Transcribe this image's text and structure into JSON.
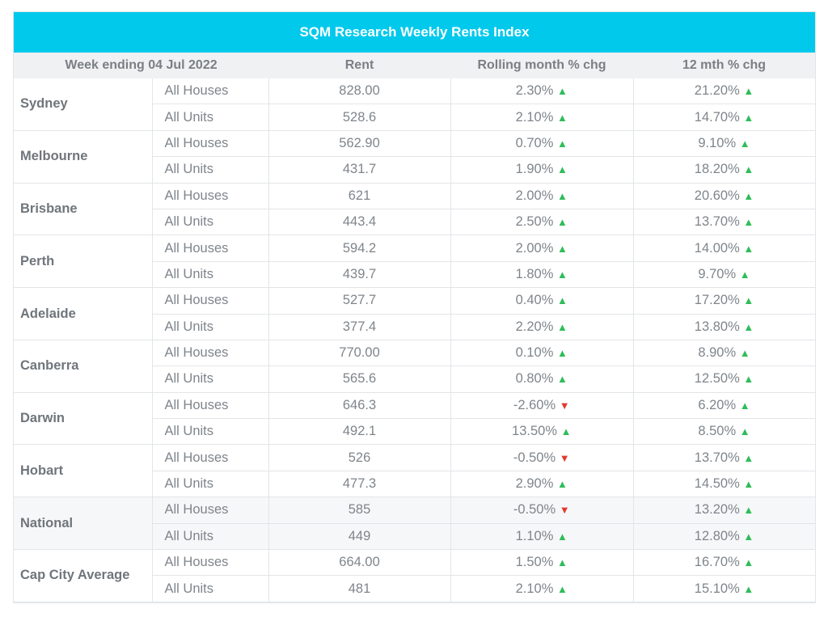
{
  "title": "SQM Research Weekly Rents Index",
  "headers": {
    "week": "Week ending 04 Jul 2022",
    "rent": "Rent",
    "rolling": "Rolling month % chg",
    "twelve": "12 mth % chg"
  },
  "colors": {
    "header_bar": "#00c9ec",
    "up": "#2ebd59",
    "down": "#e03a2f"
  },
  "rows": [
    {
      "city": "Sydney",
      "type": "All Houses",
      "rent": "828.00",
      "rolling": "2.30%",
      "rolling_dir": "up",
      "twelve": "21.20%",
      "twelve_dir": "up"
    },
    {
      "city": "Sydney",
      "type": "All Units",
      "rent": "528.6",
      "rolling": "2.10%",
      "rolling_dir": "up",
      "twelve": "14.70%",
      "twelve_dir": "up"
    },
    {
      "city": "Melbourne",
      "type": "All Houses",
      "rent": "562.90",
      "rolling": "0.70%",
      "rolling_dir": "up",
      "twelve": "9.10%",
      "twelve_dir": "up"
    },
    {
      "city": "Melbourne",
      "type": "All Units",
      "rent": "431.7",
      "rolling": "1.90%",
      "rolling_dir": "up",
      "twelve": "18.20%",
      "twelve_dir": "up"
    },
    {
      "city": "Brisbane",
      "type": "All Houses",
      "rent": "621",
      "rolling": "2.00%",
      "rolling_dir": "up",
      "twelve": "20.60%",
      "twelve_dir": "up"
    },
    {
      "city": "Brisbane",
      "type": "All Units",
      "rent": "443.4",
      "rolling": "2.50%",
      "rolling_dir": "up",
      "twelve": "13.70%",
      "twelve_dir": "up"
    },
    {
      "city": "Perth",
      "type": "All Houses",
      "rent": "594.2",
      "rolling": "2.00%",
      "rolling_dir": "up",
      "twelve": "14.00%",
      "twelve_dir": "up"
    },
    {
      "city": "Perth",
      "type": "All Units",
      "rent": "439.7",
      "rolling": "1.80%",
      "rolling_dir": "up",
      "twelve": "9.70%",
      "twelve_dir": "up"
    },
    {
      "city": "Adelaide",
      "type": "All Houses",
      "rent": "527.7",
      "rolling": "0.40%",
      "rolling_dir": "up",
      "twelve": "17.20%",
      "twelve_dir": "up"
    },
    {
      "city": "Adelaide",
      "type": "All Units",
      "rent": "377.4",
      "rolling": "2.20%",
      "rolling_dir": "up",
      "twelve": "13.80%",
      "twelve_dir": "up"
    },
    {
      "city": "Canberra",
      "type": "All Houses",
      "rent": "770.00",
      "rolling": "0.10%",
      "rolling_dir": "up",
      "twelve": "8.90%",
      "twelve_dir": "up"
    },
    {
      "city": "Canberra",
      "type": "All Units",
      "rent": "565.6",
      "rolling": "0.80%",
      "rolling_dir": "up",
      "twelve": "12.50%",
      "twelve_dir": "up"
    },
    {
      "city": "Darwin",
      "type": "All Houses",
      "rent": "646.3",
      "rolling": "-2.60%",
      "rolling_dir": "down",
      "twelve": "6.20%",
      "twelve_dir": "up"
    },
    {
      "city": "Darwin",
      "type": "All Units",
      "rent": "492.1",
      "rolling": "13.50%",
      "rolling_dir": "up",
      "twelve": "8.50%",
      "twelve_dir": "up"
    },
    {
      "city": "Hobart",
      "type": "All Houses",
      "rent": "526",
      "rolling": "-0.50%",
      "rolling_dir": "down",
      "twelve": "13.70%",
      "twelve_dir": "up"
    },
    {
      "city": "Hobart",
      "type": "All Units",
      "rent": "477.3",
      "rolling": "2.90%",
      "rolling_dir": "up",
      "twelve": "14.50%",
      "twelve_dir": "up"
    },
    {
      "city": "National",
      "type": "All Houses",
      "rent": "585",
      "rolling": "-0.50%",
      "rolling_dir": "down",
      "twelve": "13.20%",
      "twelve_dir": "up"
    },
    {
      "city": "National",
      "type": "All Units",
      "rent": "449",
      "rolling": "1.10%",
      "rolling_dir": "up",
      "twelve": "12.80%",
      "twelve_dir": "up"
    },
    {
      "city": "Cap City Average",
      "type": "All Houses",
      "rent": "664.00",
      "rolling": "1.50%",
      "rolling_dir": "up",
      "twelve": "16.70%",
      "twelve_dir": "up"
    },
    {
      "city": "Cap City Average",
      "type": "All Units",
      "rent": "481",
      "rolling": "2.10%",
      "rolling_dir": "up",
      "twelve": "15.10%",
      "twelve_dir": "up"
    }
  ]
}
